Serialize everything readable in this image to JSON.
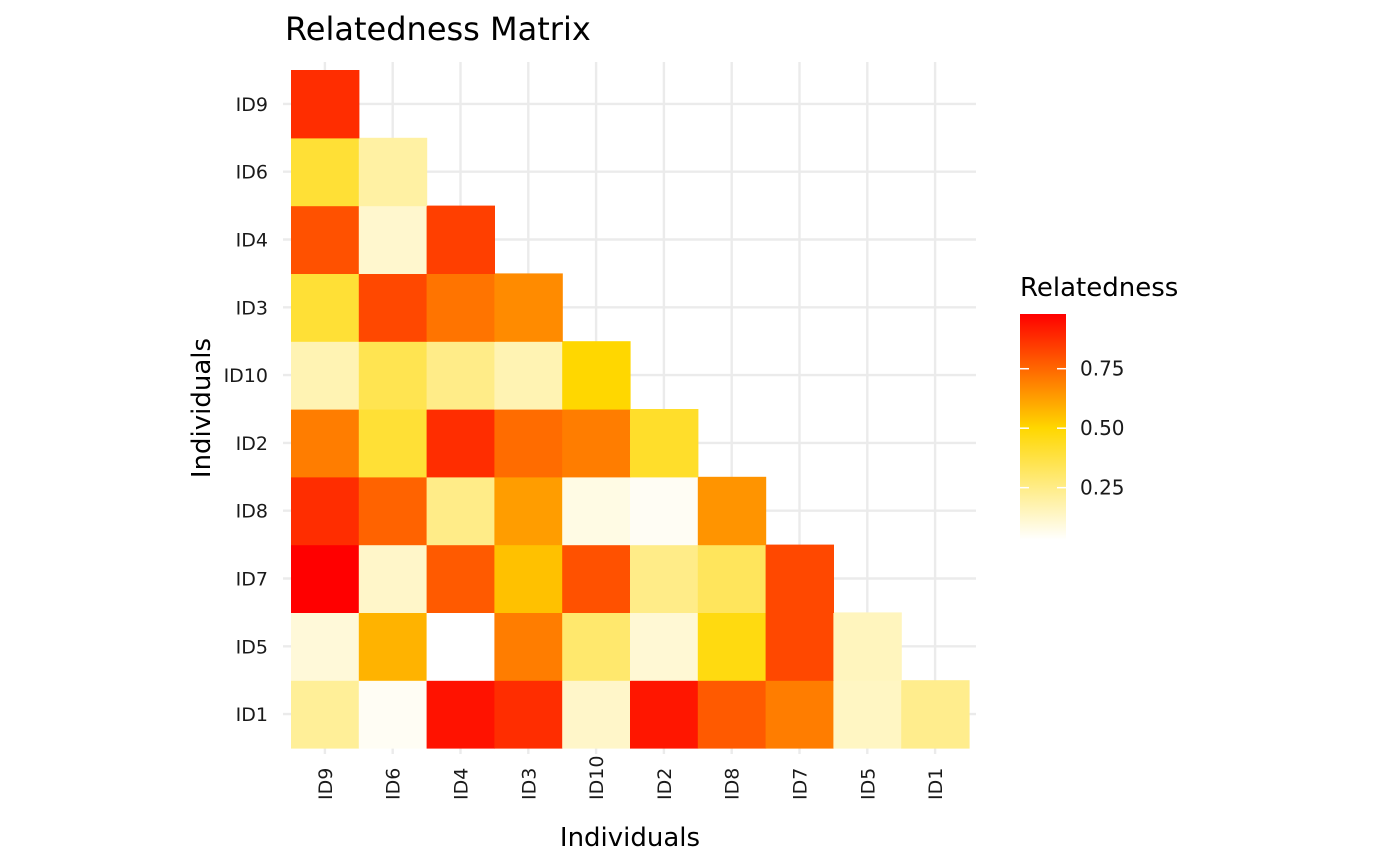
{
  "chart_data": {
    "type": "heatmap",
    "title": "Relatedness Matrix",
    "xlabel": "Individuals",
    "ylabel": "Individuals",
    "x_categories": [
      "ID9",
      "ID6",
      "ID4",
      "ID3",
      "ID10",
      "ID2",
      "ID8",
      "ID7",
      "ID5",
      "ID1"
    ],
    "y_categories": [
      "ID1",
      "ID5",
      "ID7",
      "ID8",
      "ID2",
      "ID10",
      "ID3",
      "ID4",
      "ID6",
      "ID9"
    ],
    "value_range": [
      0.03,
      0.98
    ],
    "colors": {
      "scale": [
        {
          "v": 0.03,
          "c": "#FFFFFF"
        },
        {
          "v": 0.5,
          "c": "#FFD700"
        },
        {
          "v": 0.98,
          "c": "#FF0000"
        }
      ]
    },
    "legend": {
      "title": "Relatedness",
      "placement": "right",
      "ticks": [
        {
          "v": 0.25,
          "label": "0.25"
        },
        {
          "v": 0.5,
          "label": "0.50"
        },
        {
          "v": 0.75,
          "label": "0.75"
        }
      ]
    },
    "cells": {
      "ID9": {
        "ID9": 0.88
      },
      "ID6": {
        "ID9": 0.4,
        "ID6": 0.2
      },
      "ID4": {
        "ID9": 0.8,
        "ID6": 0.12,
        "ID4": 0.84
      },
      "ID3": {
        "ID9": 0.4,
        "ID6": 0.82,
        "ID4": 0.72,
        "ID3": 0.67
      },
      "ID10": {
        "ID9": 0.17,
        "ID6": 0.35,
        "ID4": 0.25,
        "ID3": 0.17,
        "ID10": 0.5
      },
      "ID2": {
        "ID9": 0.7,
        "ID6": 0.4,
        "ID4": 0.88,
        "ID3": 0.74,
        "ID10": 0.7,
        "ID2": 0.42
      },
      "ID8": {
        "ID9": 0.88,
        "ID6": 0.76,
        "ID4": 0.25,
        "ID3": 0.63,
        "ID10": 0.08,
        "ID2": 0.05,
        "ID8": 0.65
      },
      "ID7": {
        "ID9": 0.98,
        "ID6": 0.13,
        "ID4": 0.78,
        "ID3": 0.55,
        "ID10": 0.8,
        "ID2": 0.25,
        "ID8": 0.33,
        "ID7": 0.82
      },
      "ID5": {
        "ID9": 0.1,
        "ID6": 0.58,
        "ID4": 0.03,
        "ID3": 0.7,
        "ID10": 0.3,
        "ID2": 0.11,
        "ID8": 0.47,
        "ID7": 0.82,
        "ID5": 0.15
      },
      "ID1": {
        "ID9": 0.22,
        "ID6": 0.05,
        "ID4": 0.94,
        "ID3": 0.88,
        "ID10": 0.13,
        "ID2": 0.93,
        "ID8": 0.78,
        "ID7": 0.7,
        "ID5": 0.14,
        "ID1": 0.24
      }
    }
  }
}
